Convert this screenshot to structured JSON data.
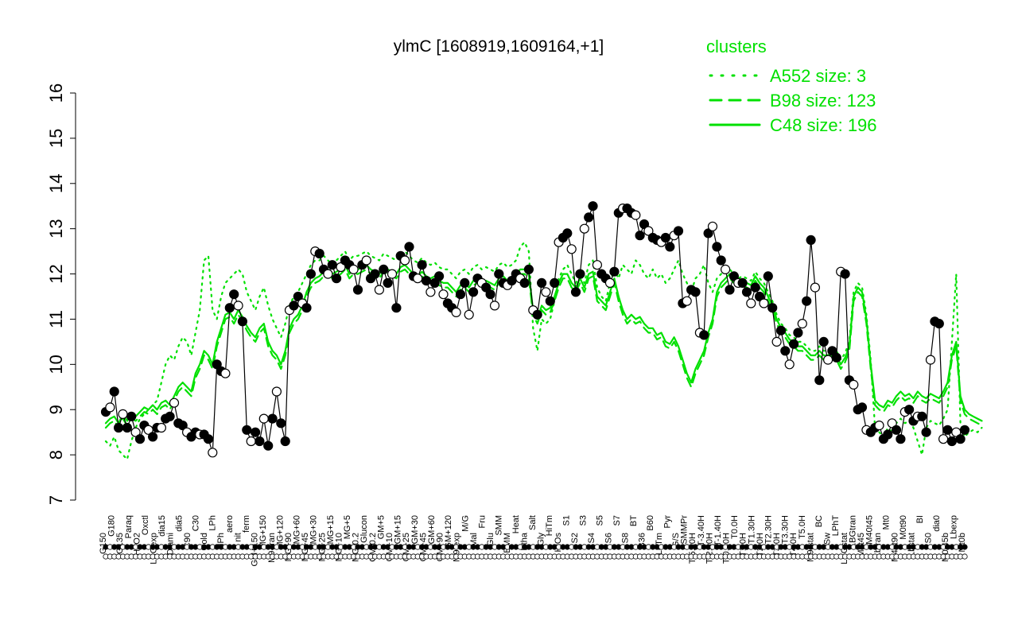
{
  "chart_data": {
    "type": "line",
    "title": "ylmC [1608919,1609164,+1]",
    "xlabel": "",
    "ylabel": "",
    "ylim": [
      7,
      16
    ],
    "yticks": [
      7,
      8,
      9,
      10,
      11,
      12,
      13,
      14,
      15,
      16
    ],
    "grid": false,
    "legend": {
      "title": "clusters",
      "placement": "top-right",
      "color": "#00e000",
      "entries": [
        {
          "label": "A552 size: 3",
          "style": "dotted"
        },
        {
          "label": "B98 size: 123",
          "style": "dashed"
        },
        {
          "label": "C48 size: 196",
          "style": "solid"
        }
      ]
    },
    "x_tick_labels": [
      "G150",
      "G180",
      "G135",
      "Paraq",
      "H2O2",
      "Oxctl",
      "LBGexp",
      "dia15",
      "Diami",
      "dia5",
      "C90",
      "C30",
      "Cold",
      "LPh",
      "HPh",
      "aero",
      "nit",
      "ferm",
      "GM+150",
      "MG+150",
      "M9-tran",
      "MG+120",
      "MG+90",
      "MG+60",
      "MG+45",
      "MG+30",
      "MG+25",
      "MG+15",
      "MG+10",
      "MG+5",
      "MG-0.2",
      "Glucon",
      "GM-0.2",
      "GM+5",
      "GM+10",
      "GM+15",
      "GM+25",
      "GM+30",
      "GM+45",
      "GM+60",
      "GM+90",
      "GM+120",
      "M9-exp",
      "M/G",
      "Mal",
      "Fru",
      "Glu",
      "SMM",
      "BMM",
      "Heat",
      "Etha",
      "Salt",
      "Gly",
      "HiTm",
      "HiOs",
      "S1",
      "S2",
      "S3",
      "S4",
      "S5",
      "S6",
      "S7",
      "S8",
      "BT",
      "B36",
      "B60",
      "LoTm",
      "Pyr",
      "G/S",
      "SMMPr",
      "T-5.40H",
      "T-3.40H",
      "T-2.40H",
      "T-1.40H",
      "T-0.40H",
      "T0.0H",
      "T1.0H",
      "T1.30H",
      "T2.0H",
      "T2.30H",
      "T3.0H",
      "T3.30H",
      "T4.0H",
      "T5.0H",
      "M9-stat",
      "BC",
      "Sw",
      "LPhT",
      "LBGstat",
      "LBGtran",
      "M0t45",
      "M40t45",
      "Lbtran",
      "Mt0",
      "M40t90",
      "M0t90",
      "Lbstat",
      "BI",
      "S0",
      "dia0",
      "M0t45b",
      "Lbexp",
      "Mt0b"
    ],
    "series": [
      {
        "style": "points-with-black-line",
        "values": [
          8.95,
          9.05,
          9.4,
          8.6,
          8.9,
          8.6,
          8.85,
          8.5,
          8.35,
          8.65,
          8.55,
          8.4,
          8.6,
          8.6,
          8.8,
          8.85,
          9.15,
          8.7,
          8.65,
          8.5,
          8.4,
          8.5,
          8.45,
          8.45,
          8.35,
          8.05,
          10.0,
          9.85,
          9.8,
          11.25,
          11.55,
          11.3,
          10.95,
          8.55,
          8.3,
          8.5,
          8.3,
          8.8,
          8.2,
          8.8,
          9.4,
          8.7,
          8.3,
          11.2,
          11.3,
          11.5,
          11.35,
          11.25,
          12.0,
          12.5,
          12.45,
          12.1,
          12.0,
          12.2,
          11.9,
          12.15,
          12.3,
          12.2,
          12.1,
          11.65,
          12.2,
          12.3,
          11.9,
          12.0,
          11.65,
          12.1,
          11.8,
          12.0,
          11.25,
          12.4,
          12.3,
          12.6,
          11.95,
          11.9,
          12.2,
          11.85,
          11.6,
          11.8,
          11.95,
          11.55,
          11.35,
          11.25,
          11.15,
          11.55,
          11.8,
          11.1,
          11.6,
          11.9,
          11.8,
          11.7,
          11.55,
          11.3,
          12.0,
          11.8,
          11.75,
          11.85,
          12.0,
          11.9,
          11.8,
          12.1,
          11.2,
          11.1,
          11.8,
          11.6,
          11.4,
          11.8,
          12.7,
          12.8,
          12.9,
          12.55,
          11.6,
          12.0,
          13.0,
          13.25,
          13.5,
          12.2,
          12.0,
          11.9,
          11.8,
          12.05,
          13.35,
          13.45,
          13.45,
          13.35,
          13.3,
          12.85,
          13.1,
          12.95,
          12.8,
          12.75,
          12.7,
          12.8,
          12.6,
          12.85,
          12.95,
          11.35,
          11.4,
          11.65,
          11.6,
          10.7,
          10.65,
          12.9,
          13.05,
          12.6,
          12.3,
          12.1,
          11.65,
          11.95,
          11.8,
          11.8,
          11.6,
          11.35,
          11.7,
          11.5,
          11.35,
          11.95,
          11.25,
          10.5,
          10.75,
          10.3,
          10.0,
          10.45,
          10.7,
          10.9,
          11.4,
          12.75,
          11.7,
          9.65,
          10.5,
          10.1,
          10.3,
          10.15,
          12.05,
          12.0,
          9.65,
          9.55,
          9.0,
          9.05,
          8.55,
          8.5,
          8.6,
          8.65,
          8.35,
          8.45,
          8.7,
          8.55,
          8.35,
          8.95,
          9.0,
          8.75,
          8.85,
          8.85,
          8.5,
          10.1,
          10.95,
          10.9,
          8.35,
          8.55,
          8.3,
          8.5,
          8.35,
          8.55
        ]
      },
      {
        "name": "C48 size: 196",
        "style": "solid",
        "values": [
          8.7,
          8.8,
          8.85,
          8.7,
          8.9,
          8.75,
          8.9,
          8.85,
          8.95,
          9.05,
          9.0,
          9.1,
          9.0,
          9.15,
          9.2,
          9.1,
          9.3,
          9.5,
          9.6,
          9.5,
          9.4,
          9.8,
          10.0,
          10.3,
          10.2,
          10.0,
          10.5,
          10.8,
          11.1,
          11.15,
          11.0,
          11.2,
          11.05,
          10.85,
          10.7,
          10.6,
          10.8,
          10.9,
          10.5,
          10.3,
          10.2,
          10.0,
          10.3,
          10.8,
          11.0,
          11.1,
          11.3,
          11.6,
          11.8,
          11.9,
          11.95,
          12.05,
          12.1,
          12.0,
          12.05,
          12.1,
          12.2,
          12.0,
          12.1,
          12.1,
          12.15,
          12.2,
          12.1,
          12.05,
          12.0,
          12.15,
          12.1,
          12.05,
          12.0,
          12.15,
          12.2,
          12.1,
          12.0,
          11.95,
          12.05,
          11.95,
          11.9,
          11.95,
          11.85,
          11.8,
          11.8,
          11.7,
          11.6,
          11.75,
          11.8,
          11.7,
          11.85,
          11.9,
          11.8,
          11.85,
          11.8,
          11.75,
          11.9,
          11.95,
          11.85,
          11.9,
          12.0,
          12.1,
          12.1,
          12.0,
          11.2,
          11.0,
          11.3,
          11.2,
          11.25,
          11.5,
          11.8,
          12.0,
          12.0,
          11.8,
          11.7,
          11.9,
          11.7,
          12.0,
          12.05,
          11.5,
          11.4,
          11.3,
          11.6,
          11.9,
          11.5,
          11.2,
          11.0,
          11.1,
          11.0,
          11.05,
          10.9,
          10.8,
          10.8,
          10.65,
          10.7,
          10.5,
          10.45,
          10.6,
          10.4,
          10.1,
          9.8,
          9.6,
          9.9,
          10.1,
          10.3,
          10.7,
          11.0,
          11.6,
          11.8,
          11.9,
          12.0,
          11.9,
          11.8,
          11.85,
          11.8,
          11.75,
          11.95,
          11.8,
          11.7,
          11.5,
          11.3,
          11.0,
          10.8,
          10.7,
          10.55,
          10.5,
          10.4,
          10.4,
          10.3,
          10.2,
          10.2,
          10.3,
          10.2,
          10.2,
          10.3,
          10.2,
          10.0,
          10.15,
          10.4,
          11.5,
          11.7,
          11.6,
          11.0,
          10.0,
          9.2,
          9.1,
          9.05,
          9.2,
          9.15,
          9.3,
          9.4,
          9.3,
          9.35,
          9.25,
          9.4,
          9.3,
          9.25,
          9.35,
          9.3,
          9.25,
          9.4,
          9.6,
          10.2,
          10.5,
          9.3,
          9.0,
          8.9,
          8.85,
          8.8,
          8.75
        ]
      },
      {
        "name": "B98 size: 123",
        "style": "dashed",
        "values": [
          8.6,
          8.7,
          8.75,
          8.6,
          8.8,
          8.65,
          8.8,
          8.75,
          8.85,
          8.95,
          8.9,
          9.0,
          8.9,
          9.05,
          9.1,
          9.0,
          9.2,
          9.4,
          9.5,
          9.4,
          9.3,
          9.7,
          9.9,
          10.2,
          10.1,
          9.9,
          10.4,
          10.7,
          11.0,
          11.05,
          10.9,
          11.1,
          10.95,
          10.75,
          10.6,
          10.5,
          10.7,
          10.8,
          10.4,
          10.2,
          10.1,
          9.9,
          10.2,
          10.7,
          10.9,
          11.0,
          11.2,
          11.5,
          11.7,
          11.8,
          11.85,
          11.95,
          12.0,
          11.9,
          11.95,
          12.0,
          12.1,
          11.9,
          12.0,
          12.0,
          12.05,
          12.1,
          12.0,
          11.95,
          11.9,
          12.05,
          12.0,
          11.95,
          11.9,
          12.05,
          12.1,
          12.0,
          11.9,
          11.85,
          11.95,
          11.85,
          11.8,
          11.85,
          11.75,
          11.7,
          11.7,
          11.6,
          11.5,
          11.65,
          11.7,
          11.6,
          11.75,
          11.8,
          11.7,
          11.75,
          11.7,
          11.65,
          11.8,
          11.85,
          11.75,
          11.8,
          11.9,
          12.0,
          12.0,
          11.9,
          11.1,
          10.9,
          11.2,
          11.1,
          11.15,
          11.4,
          11.7,
          11.9,
          11.9,
          11.7,
          11.6,
          11.8,
          11.6,
          11.9,
          11.95,
          11.4,
          11.3,
          11.2,
          11.5,
          11.8,
          11.4,
          11.1,
          10.9,
          11.0,
          10.9,
          10.95,
          10.8,
          10.7,
          10.7,
          10.55,
          10.6,
          10.4,
          10.35,
          10.5,
          10.3,
          10.0,
          9.7,
          9.5,
          9.8,
          10.0,
          10.2,
          10.6,
          10.9,
          11.5,
          11.7,
          11.8,
          11.9,
          11.8,
          11.7,
          11.75,
          11.7,
          11.65,
          11.85,
          11.7,
          11.6,
          11.4,
          11.2,
          10.9,
          10.7,
          10.6,
          10.45,
          10.4,
          10.3,
          10.3,
          10.2,
          10.1,
          10.1,
          10.2,
          10.1,
          10.1,
          10.2,
          10.1,
          9.9,
          10.05,
          10.3,
          11.4,
          11.6,
          11.5,
          10.9,
          9.9,
          9.1,
          9.0,
          8.95,
          9.1,
          9.05,
          9.2,
          9.3,
          9.2,
          9.25,
          9.15,
          9.3,
          9.2,
          9.15,
          9.25,
          9.2,
          9.15,
          9.3,
          9.5,
          10.1,
          10.4,
          9.2,
          8.9,
          8.8,
          8.75,
          8.7,
          8.65
        ]
      },
      {
        "name": "A552 size: 3",
        "style": "dotted",
        "values": [
          8.3,
          8.2,
          8.4,
          8.1,
          8.0,
          7.9,
          8.3,
          8.6,
          8.8,
          8.9,
          9.0,
          9.1,
          9.2,
          9.6,
          10.0,
          10.2,
          10.1,
          10.4,
          10.6,
          10.5,
          10.2,
          10.7,
          11.2,
          12.3,
          12.4,
          11.2,
          11.0,
          11.5,
          11.8,
          11.9,
          12.0,
          12.1,
          12.0,
          11.6,
          11.4,
          11.2,
          11.5,
          11.7,
          11.3,
          11.0,
          10.8,
          10.6,
          10.9,
          11.3,
          11.5,
          11.6,
          11.8,
          12.0,
          12.2,
          12.3,
          12.3,
          12.4,
          12.3,
          12.2,
          12.3,
          12.4,
          12.5,
          12.3,
          12.4,
          12.4,
          12.45,
          12.5,
          12.4,
          12.35,
          12.3,
          12.45,
          12.4,
          12.35,
          12.3,
          12.45,
          12.5,
          12.4,
          12.3,
          12.25,
          12.35,
          12.25,
          12.2,
          12.25,
          12.15,
          12.1,
          12.1,
          12.0,
          11.9,
          12.05,
          12.1,
          12.0,
          12.15,
          12.2,
          12.1,
          12.15,
          12.1,
          12.05,
          12.2,
          12.25,
          12.15,
          12.2,
          12.3,
          12.6,
          12.7,
          12.5,
          10.8,
          10.3,
          11.0,
          10.9,
          11.0,
          11.4,
          11.9,
          12.1,
          12.2,
          12.0,
          11.8,
          12.0,
          11.8,
          12.2,
          12.3,
          11.7,
          11.5,
          11.4,
          11.8,
          12.1,
          11.9,
          12.2,
          12.1,
          12.0,
          12.3,
          12.2,
          12.0,
          11.9,
          12.1,
          11.9,
          12.0,
          11.8,
          11.9,
          12.1,
          12.3,
          12.0,
          11.8,
          11.6,
          11.9,
          12.0,
          12.2,
          11.8,
          11.6,
          11.9,
          12.0,
          12.1,
          12.1,
          12.0,
          11.9,
          11.95,
          11.9,
          11.85,
          12.05,
          11.9,
          11.8,
          11.6,
          11.4,
          11.1,
          10.9,
          10.8,
          10.65,
          10.6,
          10.5,
          10.5,
          10.4,
          10.3,
          10.3,
          10.4,
          10.3,
          10.3,
          10.4,
          10.3,
          10.1,
          10.25,
          10.5,
          11.6,
          11.8,
          11.7,
          11.1,
          10.1,
          8.6,
          8.5,
          8.4,
          8.6,
          8.5,
          8.7,
          8.8,
          8.7,
          8.75,
          8.6,
          8.3,
          8.0,
          8.6,
          8.75,
          8.7,
          8.65,
          8.8,
          9.0,
          10.5,
          12.0,
          8.7,
          8.4,
          8.5,
          8.55,
          8.5,
          8.6
        ]
      }
    ]
  }
}
